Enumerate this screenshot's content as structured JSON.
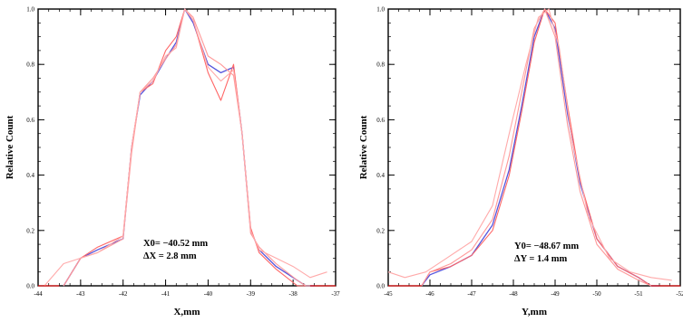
{
  "chart_data": [
    {
      "type": "line",
      "xlabel": "X,mm",
      "ylabel": "Relative Count",
      "xlim": [
        -44,
        -37
      ],
      "ylim": [
        0,
        1.0
      ],
      "x_ticks": [
        -44,
        -43,
        -42,
        -41,
        -40,
        -39,
        -38,
        -37
      ],
      "x_tick_labels": [
        "-44",
        "-43",
        "-42",
        "-41",
        "-40",
        "-39",
        "-38",
        "-37"
      ],
      "y_ticks": [
        0,
        0.2,
        0.4,
        0.6,
        0.8,
        1.0
      ],
      "y_tick_labels": [
        "0.0",
        "0.2",
        "0.4",
        "0.6",
        "0.8",
        "1.0"
      ],
      "annotations": [
        "X0= −40.52 mm",
        "ΔX = 2.8 mm"
      ],
      "series": [
        {
          "color": "#5555dd",
          "x": [
            -43.4,
            -43.0,
            -42.6,
            -42.0,
            -41.8,
            -41.6,
            -41.3,
            -41.0,
            -40.75,
            -40.55,
            -40.35,
            -40.0,
            -39.7,
            -39.4,
            -39.2,
            -39.0,
            -38.8,
            -38.4,
            -37.9,
            -37.7,
            -37.5
          ],
          "y": [
            0.0,
            0.1,
            0.13,
            0.17,
            0.5,
            0.69,
            0.74,
            0.82,
            0.88,
            1.0,
            0.95,
            0.8,
            0.77,
            0.79,
            0.55,
            0.2,
            0.13,
            0.07,
            0.02,
            0.0,
            0.0
          ]
        },
        {
          "color": "#ff6666",
          "x": [
            -43.4,
            -43.0,
            -42.6,
            -42.0,
            -41.8,
            -41.6,
            -41.3,
            -41.0,
            -40.75,
            -40.55,
            -40.35,
            -40.0,
            -39.7,
            -39.4,
            -39.2,
            -39.0,
            -38.8,
            -38.4,
            -37.9,
            -37.7,
            -37.5
          ],
          "y": [
            0.0,
            0.1,
            0.14,
            0.18,
            0.5,
            0.7,
            0.73,
            0.85,
            0.9,
            1.0,
            0.96,
            0.77,
            0.67,
            0.8,
            0.55,
            0.21,
            0.12,
            0.06,
            0.0,
            0.0,
            0.0
          ]
        },
        {
          "color": "#ff9999",
          "x": [
            -43.4,
            -43.0,
            -42.6,
            -42.0,
            -41.8,
            -41.6,
            -41.3,
            -41.0,
            -40.75,
            -40.55,
            -40.35,
            -40.0,
            -39.7,
            -39.4,
            -39.2,
            -39.0,
            -38.8,
            -38.4,
            -37.9,
            -37.7,
            -37.5
          ],
          "y": [
            0.0,
            0.1,
            0.12,
            0.17,
            0.48,
            0.7,
            0.75,
            0.82,
            0.87,
            1.0,
            0.97,
            0.83,
            0.8,
            0.76,
            0.55,
            0.19,
            0.14,
            0.08,
            0.02,
            0.0,
            0.0
          ]
        },
        {
          "color": "#ffaaaa",
          "x": [
            -43.85,
            -43.4,
            -43.0,
            -42.6,
            -42.0,
            -41.8,
            -41.6,
            -41.3,
            -41.0,
            -40.75,
            -40.55,
            -40.35,
            -40.0,
            -39.7,
            -39.4,
            -39.2,
            -39.0,
            -38.8,
            -38.4,
            -38.0,
            -37.6,
            -37.2
          ],
          "y": [
            0.0,
            0.08,
            0.1,
            0.12,
            0.18,
            0.5,
            0.7,
            0.74,
            0.83,
            0.86,
            1.0,
            0.96,
            0.79,
            0.74,
            0.78,
            0.55,
            0.2,
            0.13,
            0.1,
            0.07,
            0.03,
            0.05
          ]
        },
        {
          "color": "#ff0000",
          "x": [
            -44,
            -43.5
          ],
          "y": [
            0.0,
            0.0
          ]
        },
        {
          "color": "#ff0000",
          "x": [
            -37.6,
            -37.0
          ],
          "y": [
            0.0,
            0.0
          ]
        }
      ]
    },
    {
      "type": "line",
      "xlabel": "Y,mm",
      "ylabel": "Relative Count",
      "xlim": [
        -45,
        -52
      ],
      "ylim": [
        0,
        1.0
      ],
      "x_ticks": [
        -45,
        -46,
        -47,
        -48,
        -49,
        -50,
        -51,
        -52
      ],
      "x_tick_labels": [
        "-45",
        "-46",
        "-47",
        "-48",
        "-49",
        "-50",
        "-51",
        "-52"
      ],
      "y_ticks": [
        0,
        0.2,
        0.4,
        0.6,
        0.8,
        1.0
      ],
      "y_tick_labels": [
        "0.0",
        "0.2",
        "0.4",
        "0.6",
        "0.8",
        "1.0"
      ],
      "annotations": [
        "Y0= −48.67 mm",
        "ΔY = 1.4 mm"
      ],
      "series": [
        {
          "color": "#5555dd",
          "x": [
            -45.8,
            -46.0,
            -46.5,
            -47.0,
            -47.5,
            -47.9,
            -48.2,
            -48.5,
            -48.75,
            -49.0,
            -49.3,
            -49.6,
            -50.0,
            -50.5,
            -51.0,
            -51.3,
            -51.5
          ],
          "y": [
            0.0,
            0.04,
            0.07,
            0.11,
            0.22,
            0.42,
            0.65,
            0.9,
            1.0,
            0.93,
            0.62,
            0.37,
            0.17,
            0.07,
            0.03,
            0.0,
            0.0
          ]
        },
        {
          "color": "#ff6666",
          "x": [
            -45.8,
            -46.0,
            -46.5,
            -47.0,
            -47.5,
            -47.9,
            -48.2,
            -48.5,
            -48.75,
            -49.0,
            -49.3,
            -49.6,
            -50.0,
            -50.5,
            -51.0,
            -51.3,
            -51.5
          ],
          "y": [
            0.0,
            0.05,
            0.07,
            0.11,
            0.2,
            0.4,
            0.63,
            0.88,
            1.0,
            0.95,
            0.65,
            0.38,
            0.17,
            0.07,
            0.03,
            0.0,
            0.0
          ]
        },
        {
          "color": "#ff9999",
          "x": [
            -45.8,
            -46.0,
            -46.5,
            -47.0,
            -47.5,
            -47.9,
            -48.2,
            -48.5,
            -48.75,
            -49.0,
            -49.3,
            -49.6,
            -50.0,
            -50.5,
            -51.0,
            -51.3,
            -51.5
          ],
          "y": [
            0.0,
            0.05,
            0.08,
            0.13,
            0.24,
            0.47,
            0.7,
            0.93,
            1.0,
            0.9,
            0.58,
            0.34,
            0.15,
            0.06,
            0.02,
            0.0,
            0.0
          ]
        },
        {
          "color": "#ffaaaa",
          "x": [
            -45.0,
            -45.4,
            -45.9,
            -46.4,
            -47.0,
            -47.5,
            -47.9,
            -48.3,
            -48.6,
            -48.85,
            -49.1,
            -49.4,
            -49.8,
            -50.3,
            -50.8,
            -51.3,
            -51.8
          ],
          "y": [
            0.05,
            0.03,
            0.05,
            0.1,
            0.16,
            0.29,
            0.55,
            0.8,
            0.97,
            1.0,
            0.86,
            0.53,
            0.25,
            0.1,
            0.05,
            0.03,
            0.02
          ]
        },
        {
          "color": "#ff0000",
          "x": [
            -45.0,
            -45.8
          ],
          "y": [
            0.0,
            0.0
          ]
        },
        {
          "color": "#ff0000",
          "x": [
            -51.3,
            -52.0
          ],
          "y": [
            0.0,
            0.0
          ]
        }
      ]
    }
  ]
}
